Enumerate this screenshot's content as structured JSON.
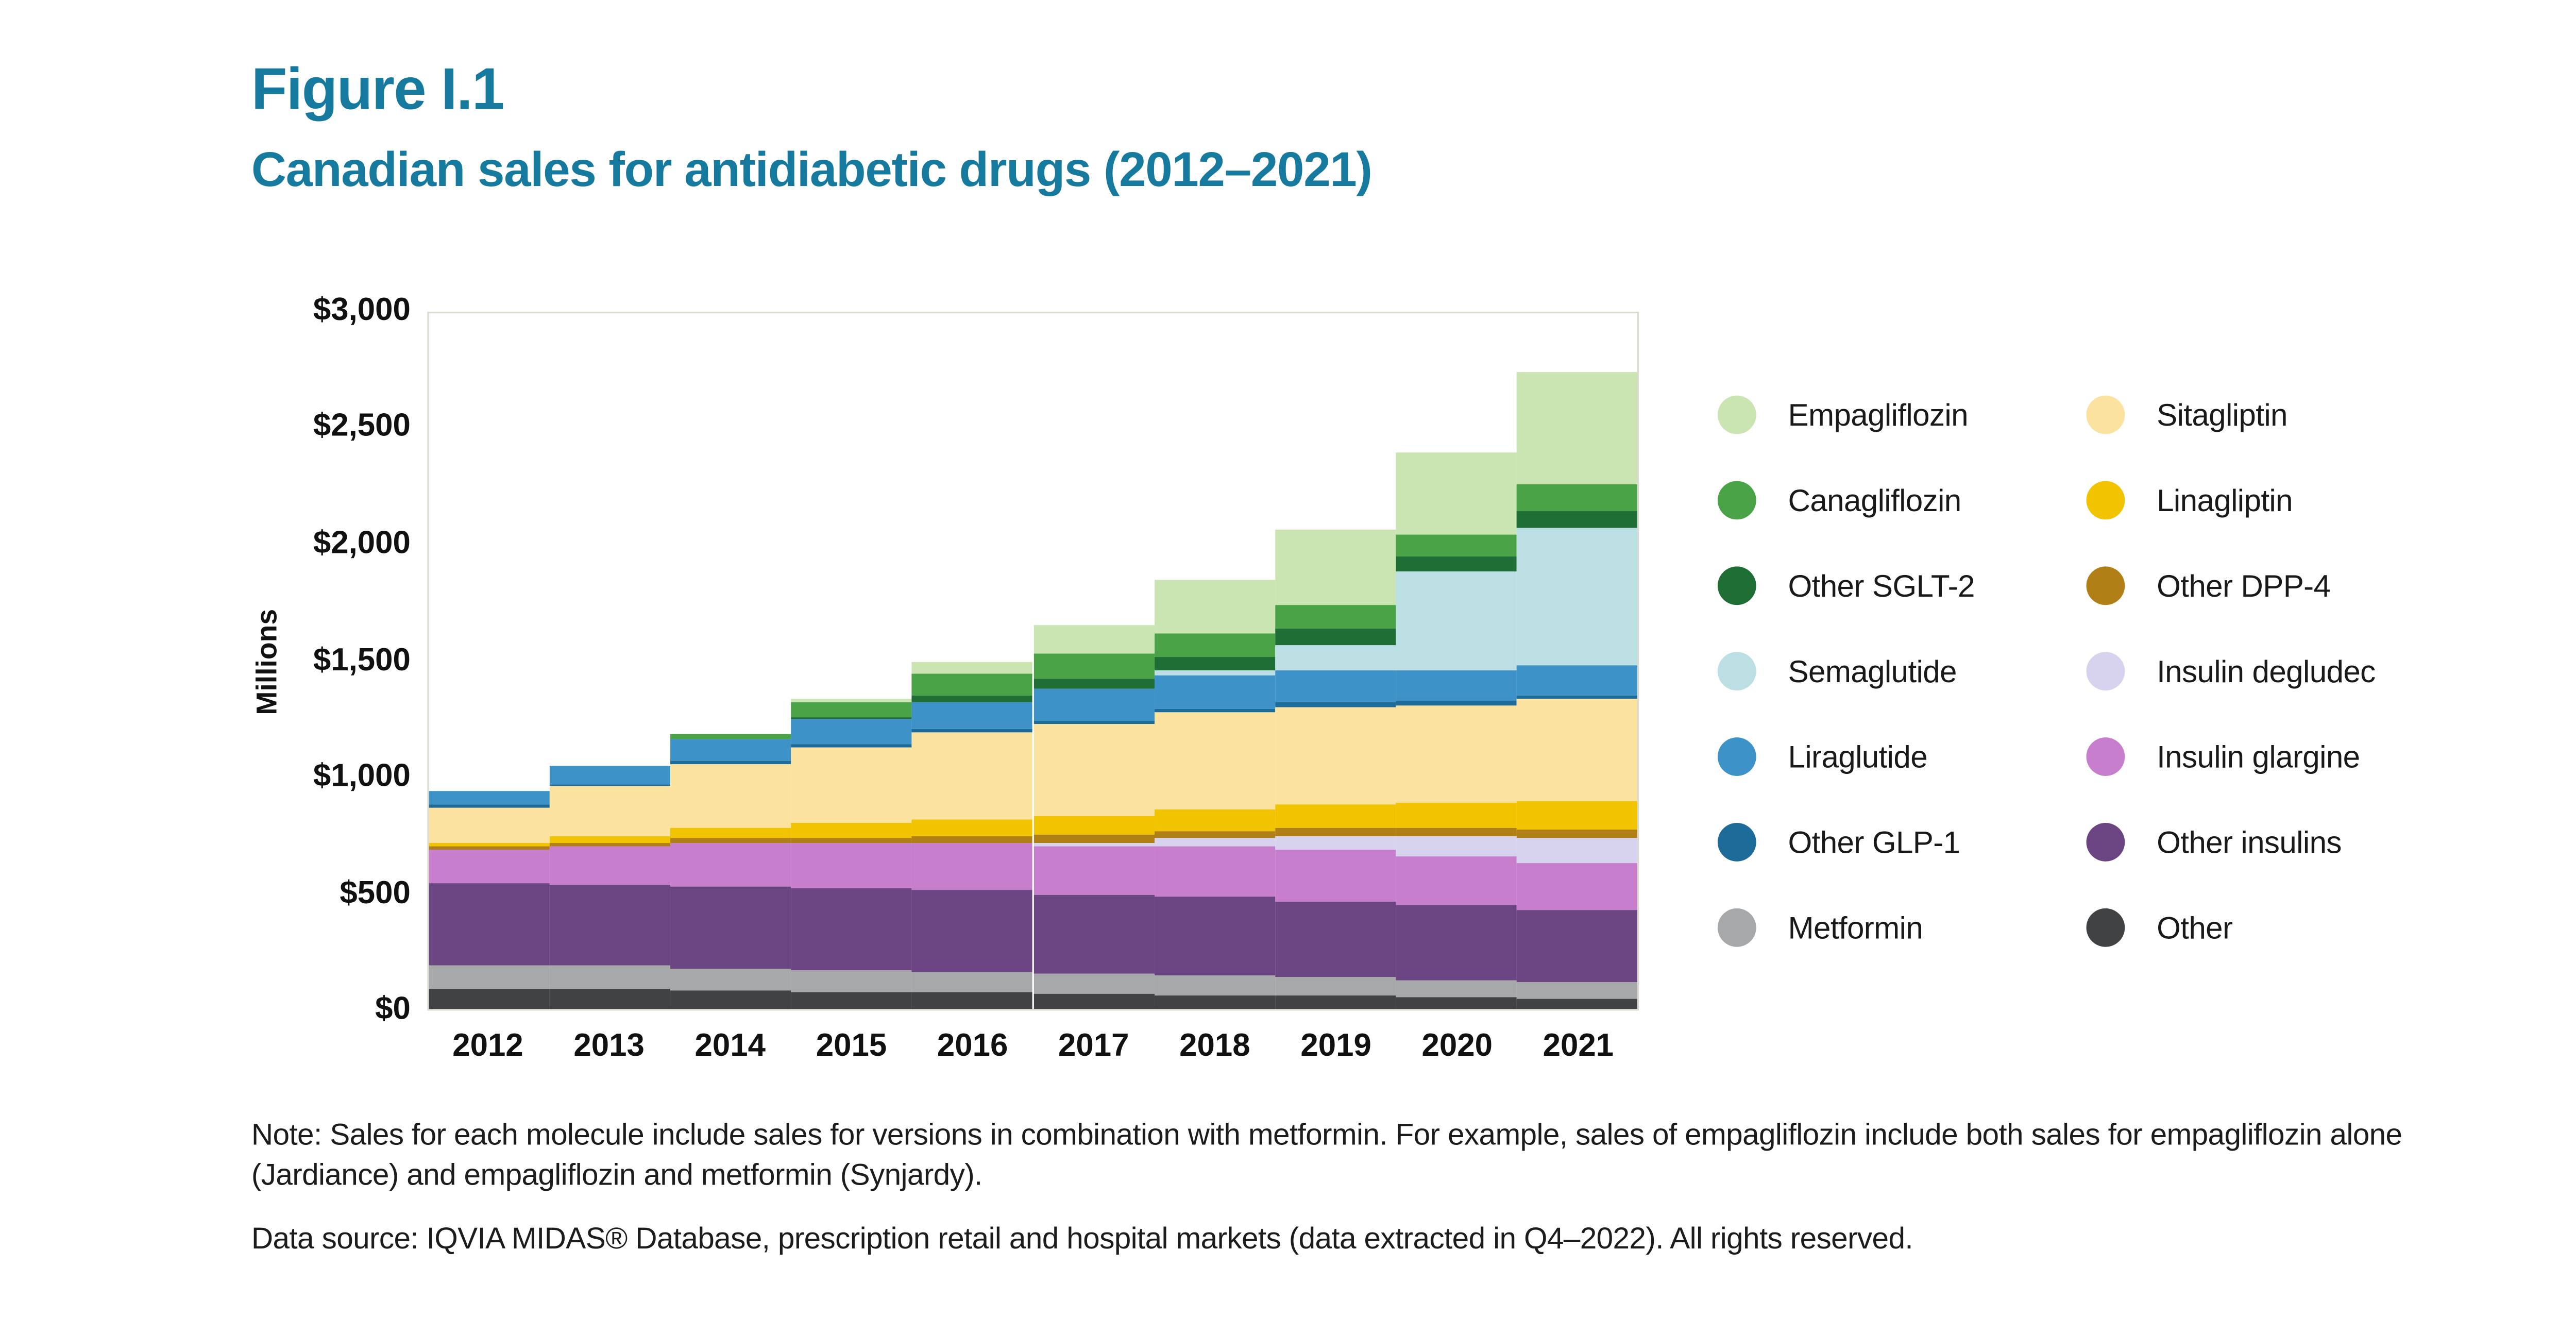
{
  "figure": {
    "label": "Figure I.1",
    "title": "Canadian sales for antidiabetic drugs (2012–2021)",
    "accent_color": "#16799e"
  },
  "chart_data": {
    "type": "bar",
    "stacked": true,
    "title": "Canadian sales for antidiabetic drugs (2012–2021)",
    "xlabel": "",
    "ylabel": "Millions",
    "ylim": [
      0,
      3000
    ],
    "grid": false,
    "units": "CAD millions",
    "yticks": [
      {
        "value": 0,
        "label": "$0"
      },
      {
        "value": 500,
        "label": "$500"
      },
      {
        "value": 1000,
        "label": "$1,000"
      },
      {
        "value": 1500,
        "label": "$1,500"
      },
      {
        "value": 2000,
        "label": "$2,000"
      },
      {
        "value": 2500,
        "label": "$2,500"
      },
      {
        "value": 3000,
        "label": "$3,000"
      }
    ],
    "categories": [
      "2012",
      "2013",
      "2014",
      "2015",
      "2016",
      "2017",
      "2018",
      "2019",
      "2020",
      "2021"
    ],
    "stack_order": "series listed bottom-to-top",
    "series": [
      {
        "name": "Other",
        "color": "#414243",
        "values": [
          90,
          85,
          80,
          75,
          70,
          65,
          60,
          55,
          50,
          45
        ]
      },
      {
        "name": "Metformin",
        "color": "#a6a8aa",
        "values": [
          100,
          100,
          95,
          90,
          90,
          85,
          85,
          80,
          75,
          70
        ]
      },
      {
        "name": "Other insulins",
        "color": "#6a4581",
        "values": [
          350,
          350,
          355,
          355,
          350,
          345,
          340,
          330,
          320,
          310
        ]
      },
      {
        "name": "Insulin glargine",
        "color": "#c77ecd",
        "values": [
          150,
          165,
          185,
          195,
          205,
          210,
          215,
          220,
          215,
          205
        ]
      },
      {
        "name": "Insulin degludec",
        "color": "#d7d2ed",
        "values": [
          0,
          0,
          0,
          0,
          0,
          10,
          35,
          60,
          85,
          110
        ]
      },
      {
        "name": "Other DPP-4",
        "color": "#b08016",
        "values": [
          10,
          15,
          20,
          25,
          30,
          35,
          35,
          35,
          35,
          35
        ]
      },
      {
        "name": "Linagliptin",
        "color": "#f2c300",
        "values": [
          15,
          30,
          45,
          60,
          70,
          80,
          90,
          100,
          110,
          120
        ]
      },
      {
        "name": "Sitagliptin",
        "color": "#fbe29e",
        "values": [
          155,
          215,
          275,
          330,
          375,
          400,
          420,
          425,
          420,
          440
        ]
      },
      {
        "name": "Other GLP-1",
        "color": "#1d6b99",
        "values": [
          15,
          10,
          15,
          15,
          15,
          15,
          15,
          15,
          20,
          20
        ]
      },
      {
        "name": "Liraglutide",
        "color": "#3d93c8",
        "values": [
          55,
          80,
          95,
          105,
          120,
          135,
          145,
          140,
          130,
          130
        ]
      },
      {
        "name": "Semaglutide",
        "color": "#bcdfe3",
        "values": [
          0,
          0,
          0,
          0,
          0,
          0,
          20,
          110,
          425,
          590
        ]
      },
      {
        "name": "Other SGLT-2",
        "color": "#1e6e35",
        "values": [
          0,
          0,
          0,
          10,
          25,
          45,
          60,
          70,
          65,
          75
        ]
      },
      {
        "name": "Canagliflozin",
        "color": "#4aa447",
        "values": [
          0,
          0,
          20,
          65,
          95,
          105,
          100,
          105,
          100,
          110
        ]
      },
      {
        "name": "Empagliflozin",
        "color": "#cae5b2",
        "values": [
          0,
          0,
          0,
          15,
          55,
          125,
          230,
          325,
          350,
          490
        ]
      }
    ],
    "totals": [
      940,
      1050,
      1185,
      1340,
      1500,
      1655,
      1850,
      2070,
      2400,
      2750
    ],
    "legend_position": "right",
    "legend_columns": [
      [
        "Empagliflozin",
        "Canagliflozin",
        "Other SGLT-2",
        "Semaglutide",
        "Liraglutide",
        "Other GLP-1",
        "Metformin"
      ],
      [
        "Sitagliptin",
        "Linagliptin",
        "Other DPP-4",
        "Insulin degludec",
        "Insulin glargine",
        "Other insulins",
        "Other"
      ]
    ]
  },
  "notes": {
    "note": "Note: Sales for each molecule include sales for versions in combination with metformin. For example, sales of empagliflozin include both sales for empagliflozin alone (Jardiance) and empagliflozin and metformin (Synjardy).",
    "source": "Data source: IQVIA MIDAS® Database, prescription retail and hospital markets (data extracted in Q4–2022). All rights reserved."
  }
}
